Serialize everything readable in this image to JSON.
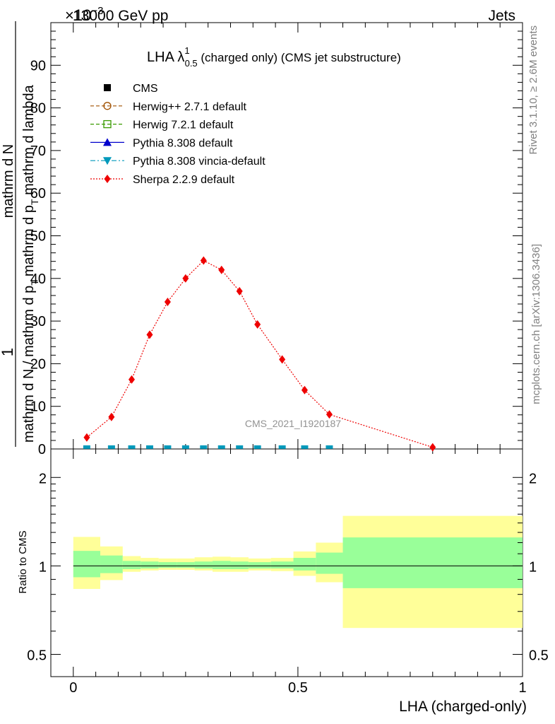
{
  "header": {
    "left": "13000 GeV pp",
    "right": "Jets",
    "exponent": "×10",
    "exponent_power": "−3"
  },
  "side_labels": {
    "rivet": "Rivet 3.1.10, ≥ 2.6M events",
    "mcplots": "mcplots.cern.ch [arXiv:1306.3436]"
  },
  "watermark": "CMS_2021_I1920187",
  "chart_data": [
    {
      "type": "line",
      "title": "LHA λ",
      "title_sup": "1",
      "title_sub": "0.5",
      "title_suffix": " (charged only) (CMS jet substructure)",
      "ylabel_numerator": "1",
      "ylabel_lines": [
        "mathrm d N / mathrm d p",
        "T",
        "mathrm d N",
        "mathrm d p",
        "T",
        " mathrm d lambda"
      ],
      "ylabel_raw": "mathrm d N / mathrm d p_T mathrm d^2N / mathrm d p_T mathrm d lambda",
      "xlim": [
        -0.05,
        1.0
      ],
      "ylim": [
        0,
        100
      ],
      "yticks": [
        0,
        10,
        20,
        30,
        40,
        50,
        60,
        70,
        80,
        90
      ],
      "grid": false,
      "legend_position": "top-left",
      "legend": [
        {
          "name": "CMS",
          "color": "#000000",
          "marker": "square",
          "line": "none"
        },
        {
          "name": "Herwig++ 2.7.1 default",
          "color": "#a05000",
          "marker": "circle-open",
          "line": "dashed"
        },
        {
          "name": "Herwig 7.2.1 default",
          "color": "#3a9a00",
          "marker": "square-open",
          "line": "dashed"
        },
        {
          "name": "Pythia 8.308 default",
          "color": "#0000cc",
          "marker": "triangle",
          "line": "solid"
        },
        {
          "name": "Pythia 8.308 vincia-default",
          "color": "#0099bb",
          "marker": "triangle-down",
          "line": "dashdot"
        },
        {
          "name": "Sherpa 2.2.9 default",
          "color": "#ee0000",
          "marker": "diamond",
          "line": "dotted"
        }
      ],
      "series": [
        {
          "name": "Sherpa 2.2.9 default",
          "x": [
            0.03,
            0.085,
            0.13,
            0.17,
            0.21,
            0.25,
            0.29,
            0.33,
            0.37,
            0.41,
            0.465,
            0.515,
            0.57,
            0.8
          ],
          "values": [
            2.7,
            7.5,
            16.3,
            26.8,
            34.5,
            40.0,
            44.2,
            42.0,
            37.0,
            29.2,
            21.0,
            13.8,
            8.1,
            0.4
          ]
        },
        {
          "name": "CMS",
          "x": [
            0.03,
            0.085,
            0.13,
            0.17,
            0.21,
            0.25,
            0.29,
            0.33,
            0.37,
            0.41,
            0.465,
            0.515,
            0.57
          ],
          "values": [
            0.02,
            0.02,
            0.02,
            0.02,
            0.02,
            0.02,
            0.02,
            0.02,
            0.02,
            0.02,
            0.02,
            0.02,
            0.02
          ]
        }
      ]
    },
    {
      "type": "area",
      "ylabel": "Ratio to CMS",
      "xlabel": "LHA (charged-only)",
      "xlim": [
        -0.05,
        1.0
      ],
      "xticks": [
        0,
        0.5,
        1
      ],
      "xtick_labels": [
        "0",
        "0.5",
        "1"
      ],
      "ylim": [
        0.42,
        2.5
      ],
      "yscale": "log",
      "yticks": [
        0.5,
        1,
        2
      ],
      "ytick_labels": [
        "0.5",
        "1",
        "2"
      ],
      "reference_line": 1,
      "band_colors": {
        "outer": "#ffff99",
        "inner": "#99ff99"
      },
      "bins": [
        {
          "lo": 0.0,
          "hi": 0.06,
          "outer": [
            0.835,
            1.255
          ],
          "inner": [
            0.915,
            1.125
          ]
        },
        {
          "lo": 0.06,
          "hi": 0.11,
          "outer": [
            0.895,
            1.165
          ],
          "inner": [
            0.945,
            1.085
          ]
        },
        {
          "lo": 0.11,
          "hi": 0.15,
          "outer": [
            0.955,
            1.08
          ],
          "inner": [
            0.975,
            1.04
          ]
        },
        {
          "lo": 0.15,
          "hi": 0.19,
          "outer": [
            0.965,
            1.065
          ],
          "inner": [
            0.98,
            1.035
          ]
        },
        {
          "lo": 0.19,
          "hi": 0.23,
          "outer": [
            0.97,
            1.06
          ],
          "inner": [
            0.985,
            1.03
          ]
        },
        {
          "lo": 0.23,
          "hi": 0.27,
          "outer": [
            0.97,
            1.06
          ],
          "inner": [
            0.985,
            1.03
          ]
        },
        {
          "lo": 0.27,
          "hi": 0.31,
          "outer": [
            0.965,
            1.07
          ],
          "inner": [
            0.98,
            1.035
          ]
        },
        {
          "lo": 0.31,
          "hi": 0.35,
          "outer": [
            0.955,
            1.075
          ],
          "inner": [
            0.975,
            1.04
          ]
        },
        {
          "lo": 0.35,
          "hi": 0.39,
          "outer": [
            0.955,
            1.07
          ],
          "inner": [
            0.975,
            1.035
          ]
        },
        {
          "lo": 0.39,
          "hi": 0.44,
          "outer": [
            0.965,
            1.06
          ],
          "inner": [
            0.98,
            1.03
          ]
        },
        {
          "lo": 0.44,
          "hi": 0.49,
          "outer": [
            0.96,
            1.065
          ],
          "inner": [
            0.98,
            1.035
          ]
        },
        {
          "lo": 0.49,
          "hi": 0.54,
          "outer": [
            0.925,
            1.12
          ],
          "inner": [
            0.965,
            1.065
          ]
        },
        {
          "lo": 0.54,
          "hi": 0.6,
          "outer": [
            0.88,
            1.2
          ],
          "inner": [
            0.94,
            1.11
          ]
        },
        {
          "lo": 0.6,
          "hi": 1.0,
          "outer": [
            0.615,
            1.48
          ],
          "inner": [
            0.84,
            1.25
          ]
        }
      ]
    }
  ]
}
